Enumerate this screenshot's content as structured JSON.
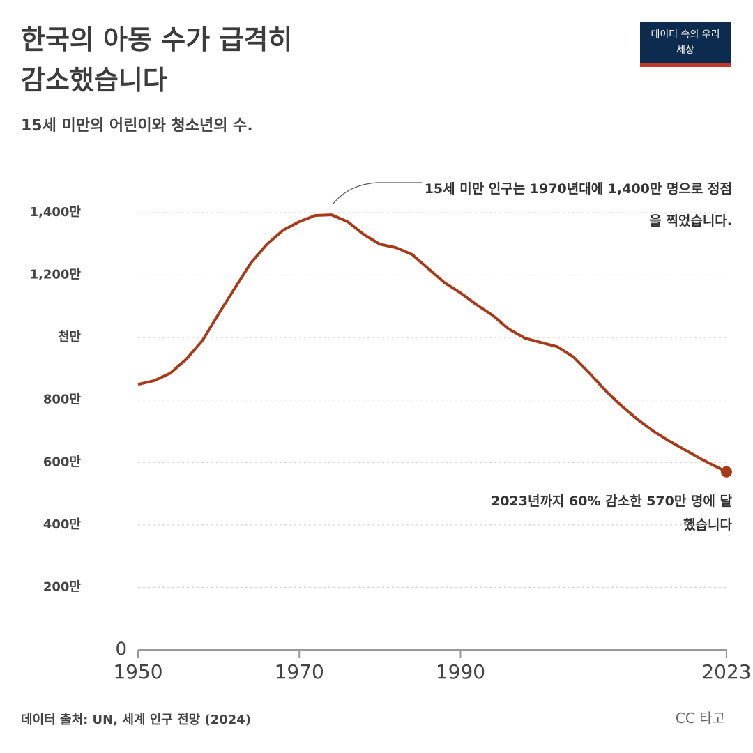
{
  "chart_data": {
    "type": "line",
    "title": "한국의 아동 수가 급격히 감소했습니다",
    "subtitle": "15세 미만의 어린이와 청소년의 수.",
    "logo": "데이터 속의 우리 세상",
    "source": "데이터 출처: UN, 세계 인구 전망 (2024)",
    "license": "CC 타고",
    "annotations": [
      "15세 미만 인구는 1970년대에 1,400만 명으로 정점을 찍었습니다.",
      "2023년까지 60% 감소한 570만 명에 달했습니다"
    ],
    "x": [
      1950,
      1952,
      1954,
      1956,
      1958,
      1960,
      1962,
      1964,
      1966,
      1968,
      1970,
      1972,
      1974,
      1976,
      1978,
      1980,
      1982,
      1984,
      1986,
      1988,
      1990,
      1992,
      1994,
      1996,
      1998,
      2000,
      2002,
      2004,
      2006,
      2008,
      2010,
      2012,
      2014,
      2016,
      2018,
      2020,
      2023
    ],
    "series": [
      {
        "color": "#a63b1a",
        "values": [
          850,
          862,
          886,
          931,
          991,
          1076,
          1158,
          1239,
          1299,
          1344,
          1371,
          1391,
          1393,
          1371,
          1330,
          1299,
          1288,
          1266,
          1221,
          1176,
          1143,
          1105,
          1071,
          1027,
          998,
          984,
          971,
          938,
          886,
          830,
          781,
          737,
          699,
          667,
          638,
          609,
          570
        ]
      }
    ],
    "xlim": [
      1950,
      2023
    ],
    "xticks": [
      1950,
      1970,
      1990,
      2023
    ],
    "ylim": [
      0,
      1400
    ],
    "yticks": [
      0,
      {
        "value": 200,
        "label": "200만"
      },
      {
        "value": 400,
        "label": "400만"
      },
      {
        "value": 600,
        "label": "600만"
      },
      {
        "value": 800,
        "label": "800만"
      },
      {
        "value": 1000,
        "label": "천만"
      },
      {
        "value": 1200,
        "label": "1,200만"
      },
      {
        "value": 1400,
        "label": "1,400만"
      }
    ],
    "grid": true
  }
}
